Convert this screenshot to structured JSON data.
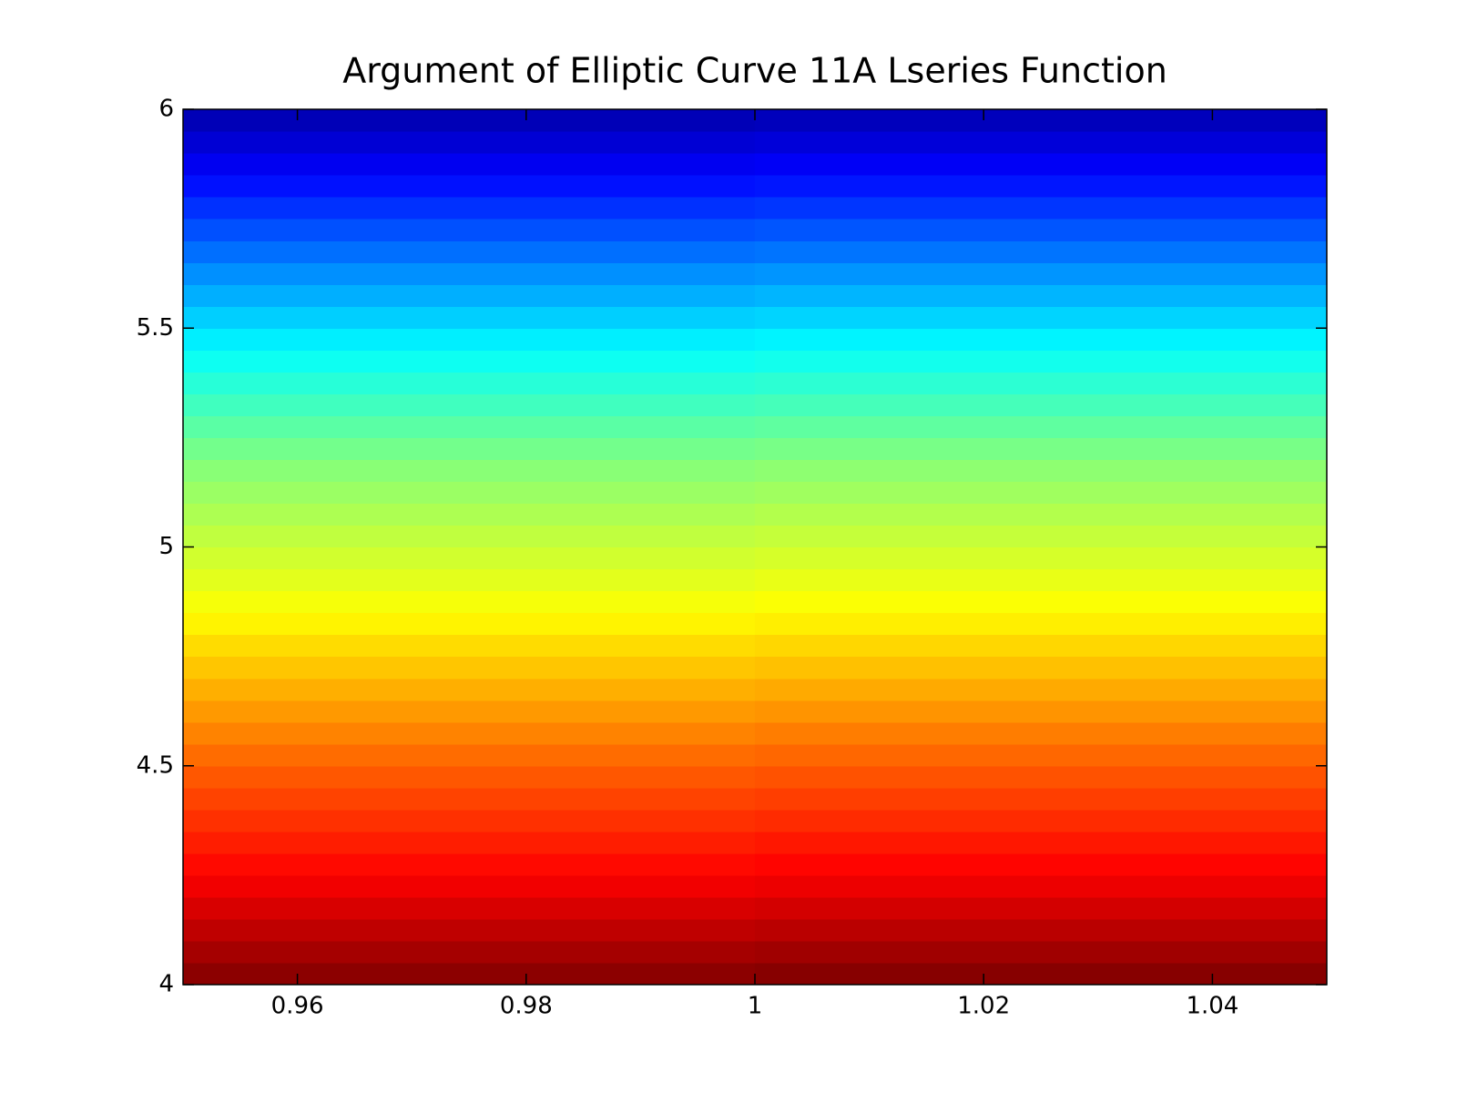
{
  "chart_data": {
    "type": "heatmap",
    "title": "Argument of Elliptic Curve 11A Lseries Function",
    "colormap": "jet",
    "zlim": [
      0,
      1
    ],
    "xlim": [
      0.95,
      1.05
    ],
    "ylim": [
      4,
      6
    ],
    "xticks": [
      0.96,
      0.98,
      1,
      1.02,
      1.04
    ],
    "yticks": [
      4,
      4.5,
      5,
      5.5,
      6
    ],
    "x": [
      0.975,
      1.025
    ],
    "y": [
      4.025,
      4.075,
      4.125,
      4.175,
      4.225,
      4.275,
      4.325,
      4.375,
      4.425,
      4.475,
      4.525,
      4.575,
      4.625,
      4.675,
      4.725,
      4.775,
      4.825,
      4.875,
      4.925,
      4.975,
      5.025,
      5.075,
      5.125,
      5.175,
      5.225,
      5.275,
      5.325,
      5.375,
      5.425,
      5.475,
      5.525,
      5.575,
      5.625,
      5.675,
      5.725,
      5.775,
      5.825,
      5.875,
      5.925,
      5.975
    ],
    "z": [
      [
        0.988,
        0.993
      ],
      [
        0.963,
        0.968
      ],
      [
        0.938,
        0.943
      ],
      [
        0.913,
        0.918
      ],
      [
        0.888,
        0.893
      ],
      [
        0.866,
        0.871
      ],
      [
        0.847,
        0.852
      ],
      [
        0.828,
        0.833
      ],
      [
        0.809,
        0.814
      ],
      [
        0.79,
        0.795
      ],
      [
        0.769,
        0.774
      ],
      [
        0.747,
        0.752
      ],
      [
        0.725,
        0.73
      ],
      [
        0.703,
        0.708
      ],
      [
        0.681,
        0.686
      ],
      [
        0.659,
        0.664
      ],
      [
        0.636,
        0.641
      ],
      [
        0.616,
        0.621
      ],
      [
        0.598,
        0.603
      ],
      [
        0.58,
        0.585
      ],
      [
        0.563,
        0.568
      ],
      [
        0.545,
        0.55
      ],
      [
        0.527,
        0.532
      ],
      [
        0.509,
        0.514
      ],
      [
        0.488,
        0.493
      ],
      [
        0.463,
        0.468
      ],
      [
        0.438,
        0.443
      ],
      [
        0.413,
        0.418
      ],
      [
        0.388,
        0.393
      ],
      [
        0.359,
        0.364
      ],
      [
        0.328,
        0.333
      ],
      [
        0.297,
        0.302
      ],
      [
        0.266,
        0.271
      ],
      [
        0.234,
        0.239
      ],
      [
        0.203,
        0.208
      ],
      [
        0.172,
        0.177
      ],
      [
        0.141,
        0.146
      ],
      [
        0.111,
        0.116
      ],
      [
        0.083,
        0.088
      ],
      [
        0.054,
        0.059
      ]
    ]
  }
}
